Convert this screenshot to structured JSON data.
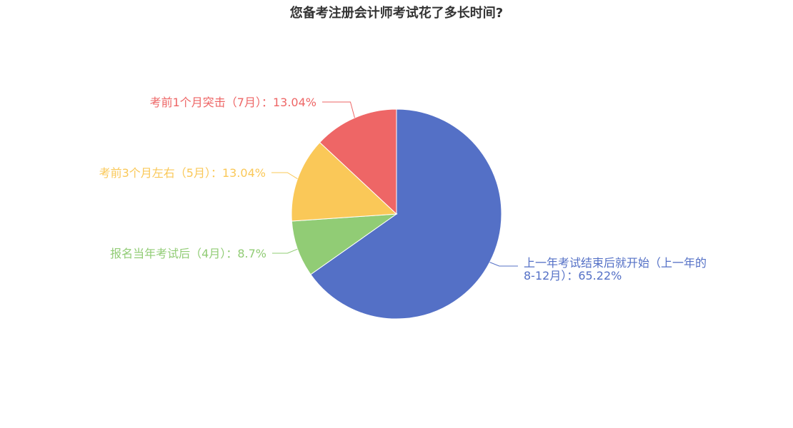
{
  "chart_data": {
    "type": "pie",
    "title": "您备考注册会计师考试花了多长时间?",
    "slices": [
      {
        "label": "上一年考试结束后就开始（上一年的8-12月）",
        "label_lines": [
          "上一年考试结束后就开始（上一年的",
          "8-12月）：65.22%"
        ],
        "value": 65.22,
        "display": "65.22%",
        "color": "#5470c6"
      },
      {
        "label": "报名当年考试后（4月）",
        "label_lines": [
          "报名当年考试后（4月）：8.7%"
        ],
        "value": 8.7,
        "display": "8.7%",
        "color": "#91cc75"
      },
      {
        "label": "考前3个月左右（5月）",
        "label_lines": [
          "考前3个月左右（5月）：13.04%"
        ],
        "value": 13.04,
        "display": "13.04%",
        "color": "#fac858"
      },
      {
        "label": "考前1个月突击（7月）",
        "label_lines": [
          "考前1个月突击（7月）：13.04%"
        ],
        "value": 13.04,
        "display": "13.04%",
        "color": "#ee6666"
      }
    ]
  }
}
